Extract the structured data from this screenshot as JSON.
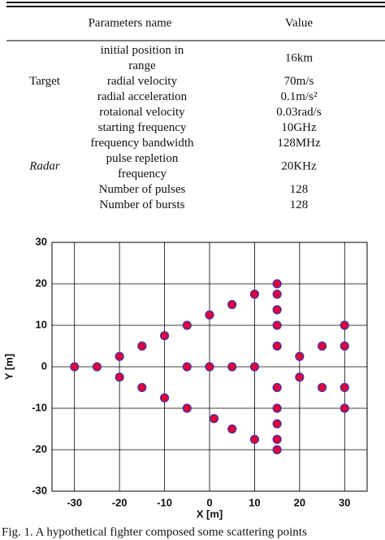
{
  "table": {
    "header": [
      "Parameters name",
      "Value"
    ],
    "groups": [
      {
        "label": "Target",
        "italic": false,
        "rows": [
          {
            "parameter": [
              "initial position in",
              "range"
            ],
            "value": "16km"
          },
          {
            "parameter": [
              "radial velocity"
            ],
            "value": "70m/s"
          },
          {
            "parameter": [
              "radial acceleration"
            ],
            "value": "0.1m/s²"
          },
          {
            "parameter": [
              "rotaional velocity"
            ],
            "value": "0.03rad/s"
          }
        ]
      },
      {
        "label": "Radar",
        "italic": true,
        "rows": [
          {
            "parameter": [
              "starting frequency"
            ],
            "value": "10GHz"
          },
          {
            "parameter": [
              "frequency bandwidth"
            ],
            "value": "128MHz"
          },
          {
            "parameter": [
              "pulse repletion",
              "frequency"
            ],
            "value": "20KHz"
          },
          {
            "parameter": [
              "Number of pulses"
            ],
            "value": "128"
          },
          {
            "parameter": [
              "Number of bursts"
            ],
            "value": "128"
          }
        ]
      }
    ]
  },
  "chart_data": {
    "type": "scatter",
    "xlabel": "X [m]",
    "ylabel": "Y [m]",
    "x": [
      -30,
      -25,
      -20,
      -20,
      -15,
      -15,
      -10,
      -10,
      -5,
      -5,
      -5,
      0,
      0,
      1,
      5,
      5,
      5,
      10,
      10,
      10,
      15,
      15,
      15,
      15,
      15,
      15,
      15,
      15,
      15,
      15,
      20,
      20,
      25,
      25,
      30,
      30,
      30,
      30
    ],
    "values": [
      0,
      0,
      2.5,
      -2.5,
      5,
      -5,
      7.5,
      -7.5,
      10,
      0,
      -10,
      0,
      12.5,
      -12.5,
      15,
      0,
      -15,
      17.5,
      0,
      -17.5,
      20,
      17.5,
      13.75,
      10,
      5,
      -5,
      -10,
      -13.75,
      -17.5,
      -20,
      2.5,
      -2.5,
      5,
      -5,
      10,
      5,
      -5,
      -10
    ],
    "color": "#e0003c",
    "edgecolor": "#3a3aa8",
    "xlim": [
      -35,
      35
    ],
    "ylim": [
      -30,
      30
    ],
    "xticks": [
      -30,
      -20,
      -10,
      0,
      10,
      20,
      30
    ],
    "yticks": [
      -30,
      -20,
      -10,
      0,
      10,
      20,
      30
    ],
    "grid": true
  },
  "caption": "Fig.  1. A hypothetical fighter composed some scattering points"
}
